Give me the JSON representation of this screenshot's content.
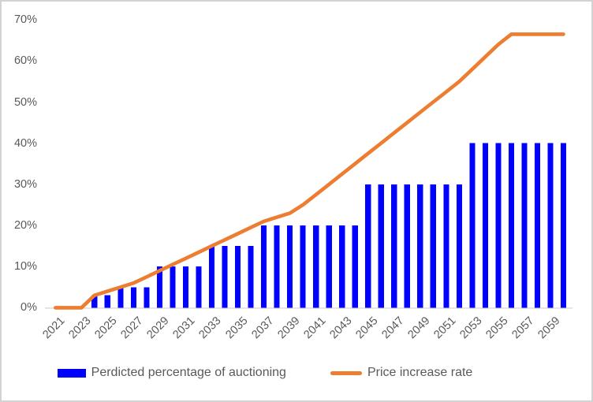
{
  "chart_data": {
    "type": "combo",
    "title": "",
    "categories": [
      2021,
      2022,
      2023,
      2024,
      2025,
      2026,
      2027,
      2028,
      2029,
      2030,
      2031,
      2032,
      2033,
      2034,
      2035,
      2036,
      2037,
      2038,
      2039,
      2040,
      2041,
      2042,
      2043,
      2044,
      2045,
      2046,
      2047,
      2048,
      2049,
      2050,
      2051,
      2052,
      2053,
      2054,
      2055,
      2056,
      2057,
      2058,
      2059,
      2060
    ],
    "x_tick_labels": [
      "2021",
      "2023",
      "2025",
      "2027",
      "2029",
      "2031",
      "2033",
      "2035",
      "2037",
      "2039",
      "2041",
      "2043",
      "2045",
      "2047",
      "2049",
      "2051",
      "2053",
      "2055",
      "2057",
      "2059"
    ],
    "y_tick_labels": [
      "0%",
      "10%",
      "20%",
      "30%",
      "40%",
      "50%",
      "60%",
      "70%"
    ],
    "y_tick_values": [
      0,
      10,
      20,
      30,
      40,
      50,
      60,
      70
    ],
    "ylim": [
      0,
      70
    ],
    "grid": false,
    "legend_position": "bottom",
    "series": [
      {
        "name": "Perdicted percentage of auctioning",
        "type": "bar",
        "color": "#0000FF",
        "values": [
          0,
          0,
          0,
          3,
          3,
          5,
          5,
          5,
          10,
          10,
          10,
          10,
          15,
          15,
          15,
          15,
          20,
          20,
          20,
          20,
          20,
          20,
          20,
          20,
          30,
          30,
          30,
          30,
          30,
          30,
          30,
          30,
          40,
          40,
          40,
          40,
          40,
          40,
          40,
          40
        ]
      },
      {
        "name": "Price increase rate",
        "type": "line",
        "color": "#ED7D31",
        "values": [
          0,
          0,
          0,
          3,
          4,
          5,
          6,
          7.5,
          9,
          10.5,
          12,
          13.5,
          15,
          16.5,
          18,
          19.5,
          21,
          22,
          23,
          25,
          27.5,
          30,
          32.5,
          35,
          37.5,
          40,
          42.5,
          45,
          47.5,
          50,
          52.5,
          55,
          58,
          61,
          64,
          66.5,
          66.5,
          66.5,
          66.5,
          66.5
        ]
      }
    ]
  },
  "legend": {
    "bar_label": "Perdicted percentage of auctioning",
    "line_label": "Price increase rate"
  },
  "colors": {
    "bar": "#0000FF",
    "line": "#ED7D31",
    "axis_text": "#595959",
    "axis_line": "#D9D9D9",
    "border": "#D2D2D2",
    "background": "#FFFFFF"
  }
}
